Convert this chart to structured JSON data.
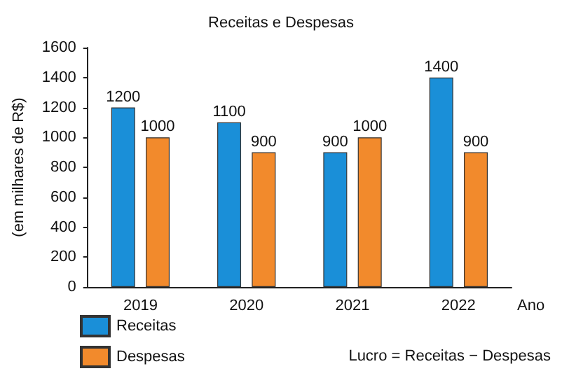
{
  "chart_data": {
    "type": "bar",
    "title": "Receitas e Despesas",
    "xlabel": "Ano",
    "ylabel": "(em milhares de R$)",
    "categories": [
      "2019",
      "2020",
      "2021",
      "2022"
    ],
    "series": [
      {
        "name": "Receitas",
        "color": "#1a8fd8",
        "values": [
          1200,
          1100,
          900,
          1400
        ]
      },
      {
        "name": "Despesas",
        "color": "#f28a2c",
        "values": [
          1000,
          900,
          1000,
          900
        ]
      }
    ],
    "ylim": [
      0,
      1600
    ],
    "yticks": [
      0,
      200,
      400,
      600,
      800,
      1000,
      1200,
      1400,
      1600
    ],
    "data_labels": true,
    "grid": false,
    "legend": "bottom left",
    "annotations": [
      "Lucro = Receitas − Despesas"
    ]
  }
}
